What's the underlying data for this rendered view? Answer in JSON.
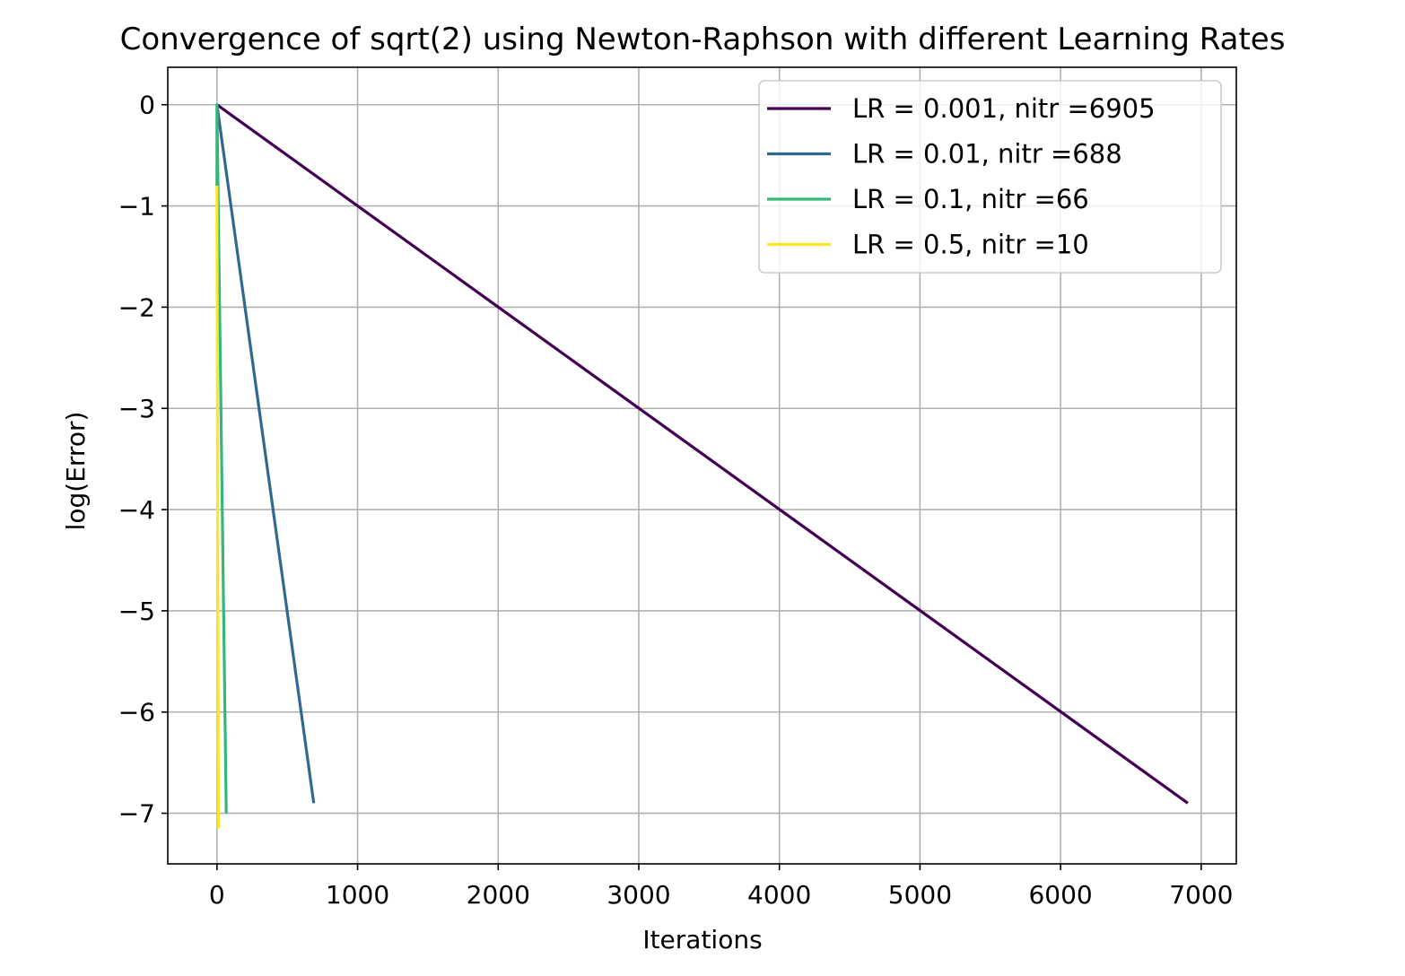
{
  "chart_data": {
    "type": "line",
    "title": "Convergence of sqrt(2) using Newton-Raphson with different Learning Rates",
    "xlabel": "Iterations",
    "ylabel": "log(Error)",
    "xlim": [
      -350,
      7250
    ],
    "ylim": [
      -7.5,
      0.37
    ],
    "xticks": [
      0,
      1000,
      2000,
      3000,
      4000,
      5000,
      6000,
      7000
    ],
    "xtick_labels": [
      "0",
      "1000",
      "2000",
      "3000",
      "4000",
      "5000",
      "6000",
      "7000"
    ],
    "yticks": [
      0,
      -1,
      -2,
      -3,
      -4,
      -5,
      -6,
      -7
    ],
    "ytick_labels": [
      "0",
      "−1",
      "−2",
      "−3",
      "−4",
      "−5",
      "−6",
      "−7"
    ],
    "grid": true,
    "legend_position": "top-right",
    "series": [
      {
        "name": "LR = 0.001, nitr =6905",
        "color": "#440154",
        "x": [
          0,
          6905
        ],
        "y": [
          0,
          -6.9
        ]
      },
      {
        "name": "LR = 0.01, nitr =688",
        "color": "#31688e",
        "x": [
          0,
          688
        ],
        "y": [
          0,
          -6.9
        ]
      },
      {
        "name": "LR = 0.1, nitr =66",
        "color": "#35b779",
        "x": [
          0,
          0,
          66
        ],
        "y": [
          -0.8,
          0,
          -7.0
        ]
      },
      {
        "name": "LR = 0.5, nitr =10",
        "color": "#fde725",
        "x": [
          0,
          10
        ],
        "y": [
          -0.8,
          -7.15
        ]
      }
    ]
  }
}
